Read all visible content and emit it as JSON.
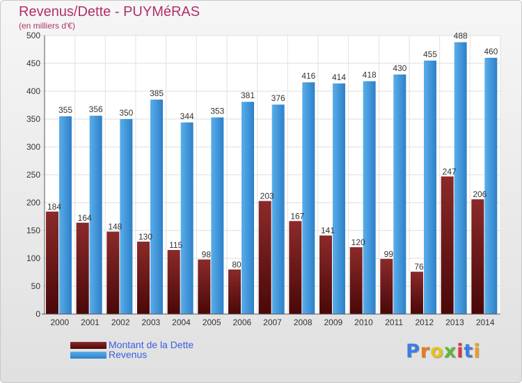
{
  "title": "Revenus/Dette - PUYMéRAS",
  "subtitle": "(en milliers d'€)",
  "logo": {
    "text": "Proxiti",
    "letter_colors": [
      "#3d7de0",
      "#e87a1e",
      "#e8c21e",
      "#5cb83c",
      "#d83a3a",
      "#3d7de0",
      "#e8a21e"
    ]
  },
  "colors": {
    "dette": "#7a1c1c",
    "revenus": "#3d95dd",
    "title": "#b0306a",
    "legend_text": "#3a5de0"
  },
  "chart_data": {
    "type": "bar",
    "categories": [
      "2000",
      "2001",
      "2002",
      "2003",
      "2004",
      "2005",
      "2006",
      "2007",
      "2008",
      "2009",
      "2010",
      "2011",
      "2012",
      "2013",
      "2014"
    ],
    "series": [
      {
        "name": "Montant de la Dette",
        "values": [
          184,
          164,
          148,
          130,
          115,
          98,
          80,
          203,
          167,
          141,
          120,
          99,
          76,
          247,
          206
        ]
      },
      {
        "name": "Revenus",
        "values": [
          355,
          356,
          350,
          385,
          344,
          353,
          381,
          376,
          416,
          414,
          418,
          430,
          455,
          488,
          460
        ]
      }
    ],
    "ylim": [
      0,
      500
    ],
    "yticks": [
      0,
      50,
      100,
      150,
      200,
      250,
      300,
      350,
      400,
      450,
      500
    ],
    "grid": true,
    "legend_position": "bottom-left"
  }
}
